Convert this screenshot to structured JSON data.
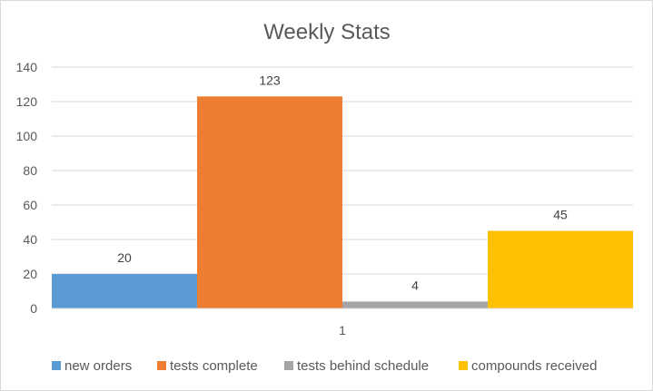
{
  "chart_data": {
    "type": "bar",
    "title": "Weekly Stats",
    "categories": [
      "1"
    ],
    "series": [
      {
        "name": "new orders",
        "values": [
          20
        ],
        "color": "#5b9bd5"
      },
      {
        "name": "tests complete",
        "values": [
          123
        ],
        "color": "#ed7d31"
      },
      {
        "name": "tests behind schedule",
        "values": [
          4
        ],
        "color": "#a5a5a5"
      },
      {
        "name": "compounds received",
        "values": [
          45
        ],
        "color": "#ffc000"
      }
    ],
    "xlabel": "",
    "ylabel": "",
    "ylim": [
      0,
      140
    ],
    "yticks": [
      0,
      20,
      40,
      60,
      80,
      100,
      120,
      140
    ],
    "grid": true,
    "legend": "bottom",
    "data_labels": true
  }
}
